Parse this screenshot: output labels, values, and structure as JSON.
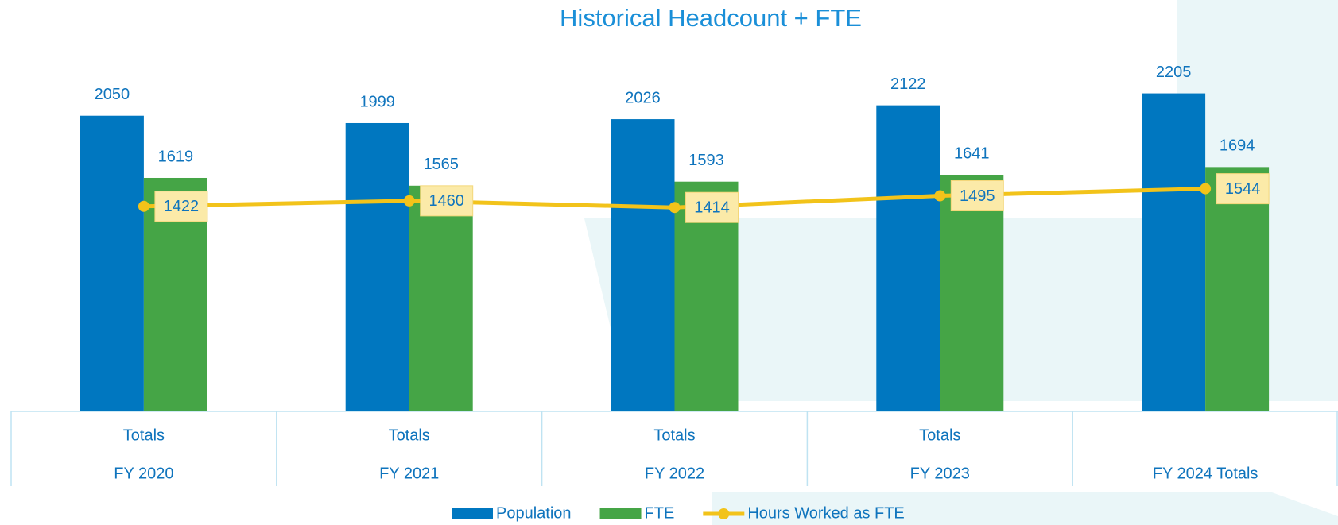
{
  "chart_data": {
    "type": "bar_line",
    "title": "Historical Headcount + FTE",
    "categories": [
      {
        "label": "Totals",
        "group": "FY 2020"
      },
      {
        "label": "Totals",
        "group": "FY 2021"
      },
      {
        "label": "Totals",
        "group": "FY 2022"
      },
      {
        "label": "Totals",
        "group": "FY 2023"
      },
      {
        "label": null,
        "group": "FY 2024 Totals"
      }
    ],
    "series": [
      {
        "name": "Population",
        "type": "bar",
        "color": "#0077c0",
        "values": [
          2050,
          1999,
          2026,
          2122,
          2205
        ]
      },
      {
        "name": "FTE",
        "type": "bar",
        "color": "#45a546",
        "values": [
          1619,
          1565,
          1593,
          1641,
          1694
        ]
      },
      {
        "name": "Hours Worked as FTE",
        "type": "line",
        "color": "#f2c31a",
        "values": [
          1422,
          1460,
          1414,
          1495,
          1544
        ]
      }
    ],
    "ylim": [
      0,
      2500
    ],
    "legend": "bottom"
  }
}
